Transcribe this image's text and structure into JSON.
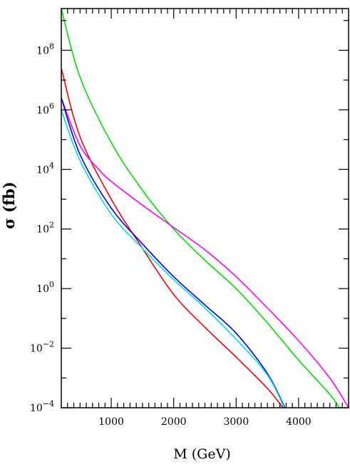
{
  "chart_data": {
    "type": "line",
    "xlabel": "M (GeV)",
    "ylabel": "σ (fb)",
    "xlim": [
      200,
      4800
    ],
    "ylim_log10": [
      -4,
      9.4
    ],
    "yscale": "log",
    "grid": false,
    "x_ticks": [
      {
        "value": 1000,
        "label": "1000"
      },
      {
        "value": 2000,
        "label": "2000"
      },
      {
        "value": 3000,
        "label": "3000"
      },
      {
        "value": 4000,
        "label": "4000"
      }
    ],
    "y_ticks": [
      {
        "exp": -4,
        "base": "10",
        "sup": "−4"
      },
      {
        "exp": -2,
        "base": "10",
        "sup": "−2"
      },
      {
        "exp": 0,
        "base": "10",
        "sup": "0"
      },
      {
        "exp": 2,
        "base": "10",
        "sup": "2"
      },
      {
        "exp": 4,
        "base": "10",
        "sup": "4"
      },
      {
        "exp": 6,
        "base": "10",
        "sup": "6"
      },
      {
        "exp": 8,
        "base": "10",
        "sup": "8"
      }
    ],
    "series": [
      {
        "color": "#00e000",
        "x": [
          200,
          500,
          1000,
          1500,
          2000,
          2500,
          3000,
          3500,
          4000,
          4500,
          4650
        ],
        "y": [
          9.4,
          7.1,
          4.9,
          3.3,
          2.0,
          0.95,
          0.0,
          -1.15,
          -2.4,
          -3.55,
          -4.0
        ]
      },
      {
        "color": "#ff0000",
        "x": [
          200,
          500,
          1000,
          1500,
          2000,
          2500,
          3000,
          3500,
          3750
        ],
        "y": [
          7.4,
          5.1,
          3.0,
          1.35,
          -0.2,
          -1.3,
          -2.3,
          -3.35,
          -4.0
        ]
      },
      {
        "color": "#ff00ff",
        "x": [
          200,
          500,
          800,
          1000,
          1500,
          2000,
          2500,
          3000,
          3500,
          4000,
          4500,
          4800
        ],
        "y": [
          6.4,
          4.8,
          4.0,
          3.6,
          2.8,
          2.05,
          1.3,
          0.4,
          -0.65,
          -1.75,
          -3.0,
          -4.0
        ]
      },
      {
        "color": "#0000ff",
        "x": [
          200,
          500,
          1000,
          1500,
          2000,
          2500,
          3000,
          3500,
          3780
        ],
        "y": [
          6.4,
          4.5,
          2.7,
          1.5,
          0.4,
          -0.55,
          -1.5,
          -2.85,
          -4.0
        ]
      },
      {
        "color": "#00e0e0",
        "x": [
          200,
          500,
          1000,
          1500,
          2000,
          2500,
          3000,
          3500,
          3770
        ],
        "y": [
          6.0,
          4.3,
          2.5,
          1.35,
          0.3,
          -0.65,
          -1.7,
          -2.9,
          -4.0
        ]
      }
    ]
  }
}
